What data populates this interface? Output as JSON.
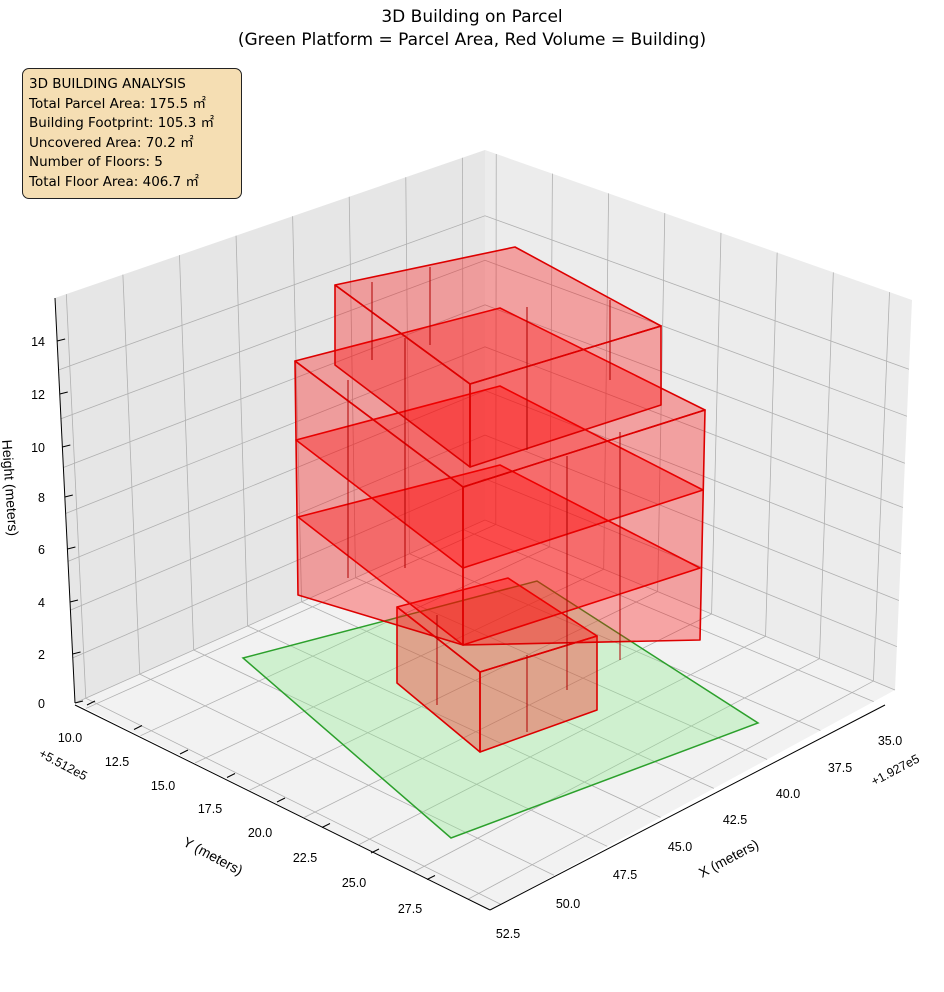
{
  "chart_data": {
    "type": "3d-polygon",
    "title": "3D Building on Parcel",
    "subtitle": "(Green Platform = Parcel Area, Red Volume = Building)",
    "xlabel": "X (meters)",
    "ylabel": "Y (meters)",
    "zlabel": "Height (meters)",
    "x_offset_label": "+1.927e5",
    "y_offset_label": "+5.512e5",
    "x_ticks": [
      "35.0",
      "37.5",
      "40.0",
      "42.5",
      "45.0",
      "47.5",
      "50.0",
      "52.5"
    ],
    "y_ticks": [
      "10.0",
      "12.5",
      "15.0",
      "17.5",
      "20.0",
      "22.5",
      "25.0",
      "27.5"
    ],
    "z_ticks": [
      "0",
      "2",
      "4",
      "6",
      "8",
      "10",
      "12",
      "14"
    ],
    "zlim": [
      0,
      15
    ],
    "grid": true,
    "series": [
      {
        "name": "Parcel Area",
        "color": "#90ee90",
        "edge_color": "#2ca02c"
      },
      {
        "name": "Building",
        "color": "#ff0000",
        "edge_color": "#d00000",
        "floors": 5
      }
    ]
  },
  "info_box": {
    "lines": [
      "3D BUILDING ANALYSIS",
      "Total Parcel Area: 175.5 ㎡",
      "Building Footprint: 105.3 ㎡",
      "Uncovered Area: 70.2 ㎡",
      "Number of Floors: 5",
      "Total Floor Area: 406.7 ㎡"
    ],
    "background": "#f5deb3"
  }
}
